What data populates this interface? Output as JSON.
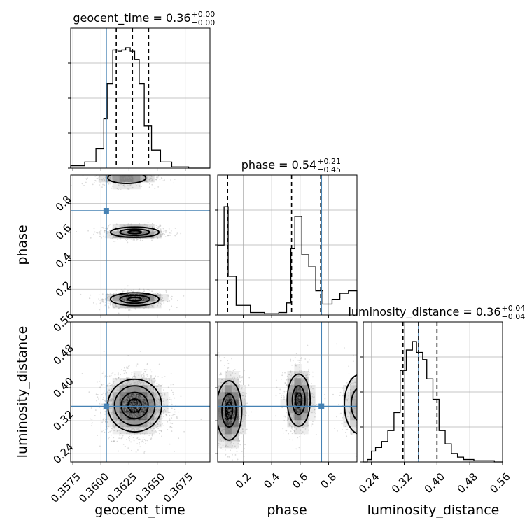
{
  "chart_data": {
    "type": "corner",
    "truth_color": "#4682b4",
    "parameters": [
      {
        "name": "geocent_time",
        "label": "geocent_time",
        "title_prefix": "geocent_time = 0.36",
        "title_plus": "+0.00",
        "title_minus": "−0.00",
        "range": [
          0.3573,
          0.3697
        ],
        "ticks": [
          0.3575,
          0.36,
          0.3625,
          0.365,
          0.3675
        ],
        "tick_labels": [
          "0.3575",
          "0.3600",
          "0.3625",
          "0.3650",
          "0.3675"
        ],
        "truth": 0.36047,
        "quantiles": [
          0.36136,
          0.3628,
          0.36424
        ],
        "histogram": {
          "bin_edges": [
            0.3573,
            0.35855,
            0.35955,
            0.36025,
            0.36055,
            0.36105,
            0.3615,
            0.36185,
            0.3622,
            0.3626,
            0.363,
            0.3634,
            0.36385,
            0.3645,
            0.3653,
            0.3663,
            0.3678,
            0.3697
          ],
          "density": [
            0.02,
            0.05,
            0.16,
            0.41,
            0.7,
            0.98,
            0.97,
            0.98,
            1.0,
            0.97,
            0.9,
            0.7,
            0.35,
            0.15,
            0.05,
            0.01,
            0.0
          ]
        }
      },
      {
        "name": "phase",
        "label": "phase",
        "title_prefix": "phase = 0.54",
        "title_plus": "+0.21",
        "title_minus": "−0.45",
        "range": [
          0.02,
          1.0
        ],
        "ticks": [
          0.2,
          0.4,
          0.6,
          0.8
        ],
        "tick_labels": [
          "0.2",
          "0.4",
          "0.6",
          "0.8"
        ],
        "truth": 0.75,
        "quantiles": [
          0.09,
          0.54,
          0.745
        ],
        "histogram": {
          "bin_edges": [
            0.02,
            0.065,
            0.094,
            0.15,
            0.25,
            0.35,
            0.45,
            0.505,
            0.535,
            0.563,
            0.612,
            0.661,
            0.71,
            0.76,
            0.825,
            0.88,
            0.94,
            1.0
          ],
          "density": [
            0.58,
            0.9,
            0.32,
            0.08,
            0.02,
            0.01,
            0.02,
            0.1,
            0.55,
            0.82,
            0.5,
            0.4,
            0.2,
            0.09,
            0.13,
            0.18,
            0.2
          ]
        }
      },
      {
        "name": "luminosity_distance",
        "label": "luminosity_distance",
        "title_prefix": "luminosity_distance = 0.36",
        "title_plus": "+0.04",
        "title_minus": "−0.04",
        "range": [
          0.22,
          0.56
        ],
        "ticks": [
          0.24,
          0.32,
          0.4,
          0.48,
          0.56
        ],
        "tick_labels": [
          "0.24",
          "0.32",
          "0.40",
          "0.48",
          "0.56"
        ],
        "truth": 0.355,
        "quantiles": [
          0.317,
          0.355,
          0.4
        ],
        "histogram": {
          "bin_edges": [
            0.22,
            0.23,
            0.24,
            0.25,
            0.265,
            0.28,
            0.295,
            0.31,
            0.325,
            0.34,
            0.35,
            0.365,
            0.375,
            0.39,
            0.405,
            0.42,
            0.435,
            0.45,
            0.465,
            0.49,
            0.54,
            0.56
          ],
          "density": [
            0.0,
            0.02,
            0.09,
            0.12,
            0.17,
            0.26,
            0.41,
            0.76,
            0.93,
            1.0,
            0.91,
            0.85,
            0.69,
            0.52,
            0.26,
            0.15,
            0.07,
            0.04,
            0.02,
            0.01,
            0.0
          ]
        }
      }
    ],
    "pairs": [
      {
        "x": "geocent_time",
        "y": "phase",
        "clusters": [
          {
            "cx": 0.363,
            "cy": 0.13,
            "sx": 0.0012,
            "sy": 0.025,
            "weight": 0.42,
            "levels": [
              0.5,
              1.1,
              1.8
            ]
          },
          {
            "cx": 0.363,
            "cy": 0.6,
            "sx": 0.0012,
            "sy": 0.02,
            "weight": 0.38,
            "levels": [
              0.5,
              1.1,
              1.8
            ]
          },
          {
            "cx": 0.3623,
            "cy": 0.98,
            "sx": 0.0013,
            "sy": 0.03,
            "weight": 0.2,
            "levels": [
              1.3
            ]
          }
        ],
        "samples": 1700
      },
      {
        "x": "geocent_time",
        "y": "luminosity_distance",
        "clusters": [
          {
            "cx": 0.363,
            "cy": 0.357,
            "sx": 0.0012,
            "sy": 0.032,
            "weight": 1.0,
            "levels": [
              0.5,
              1.0,
              1.5,
              2.0
            ]
          }
        ],
        "samples": 2200
      },
      {
        "x": "phase",
        "y": "luminosity_distance",
        "clusters": [
          {
            "cx": 0.1,
            "cy": 0.345,
            "sx": 0.05,
            "sy": 0.04,
            "weight": 0.45,
            "levels": [
              0.5,
              1.0,
              1.8
            ]
          },
          {
            "cx": 0.59,
            "cy": 0.37,
            "sx": 0.045,
            "sy": 0.035,
            "weight": 0.38,
            "levels": [
              0.5,
              1.0,
              1.8
            ]
          },
          {
            "cx": 1.02,
            "cy": 0.36,
            "sx": 0.06,
            "sy": 0.04,
            "weight": 0.17,
            "levels": [
              1.0,
              1.8
            ]
          }
        ],
        "samples": 1800
      }
    ]
  }
}
